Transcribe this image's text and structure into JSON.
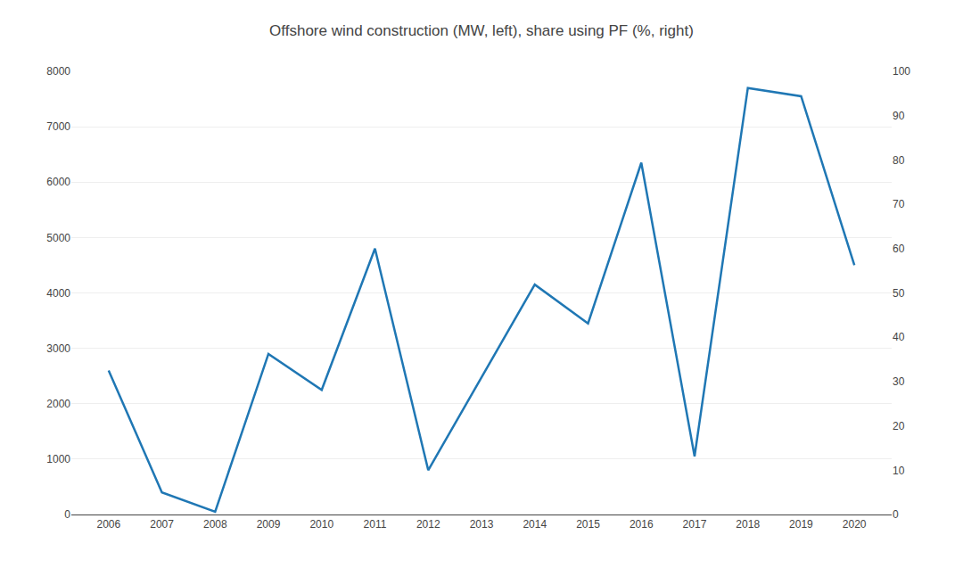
{
  "chart_data": {
    "type": "line",
    "title": "Offshore wind construction (MW, left), share using PF (%, right)",
    "x": [
      2006,
      2007,
      2008,
      2009,
      2010,
      2011,
      2012,
      2013,
      2014,
      2015,
      2016,
      2017,
      2018,
      2019,
      2020
    ],
    "values": [
      2600,
      400,
      50,
      2900,
      2250,
      4800,
      800,
      null,
      4150,
      3450,
      6350,
      1050,
      7700,
      7550,
      4500
    ],
    "xlim": [
      2005.3,
      2020.7
    ],
    "xticks": [
      2006,
      2007,
      2008,
      2009,
      2010,
      2011,
      2012,
      2013,
      2014,
      2015,
      2016,
      2017,
      2018,
      2019,
      2020
    ],
    "ylim": [
      0,
      8000
    ],
    "yticks": [
      0,
      1000,
      2000,
      3000,
      4000,
      5000,
      6000,
      7000,
      8000
    ],
    "y2lim": [
      0,
      100
    ],
    "y2ticks": [
      0,
      10,
      20,
      30,
      40,
      50,
      60,
      70,
      80,
      90,
      100
    ],
    "grid": true
  }
}
